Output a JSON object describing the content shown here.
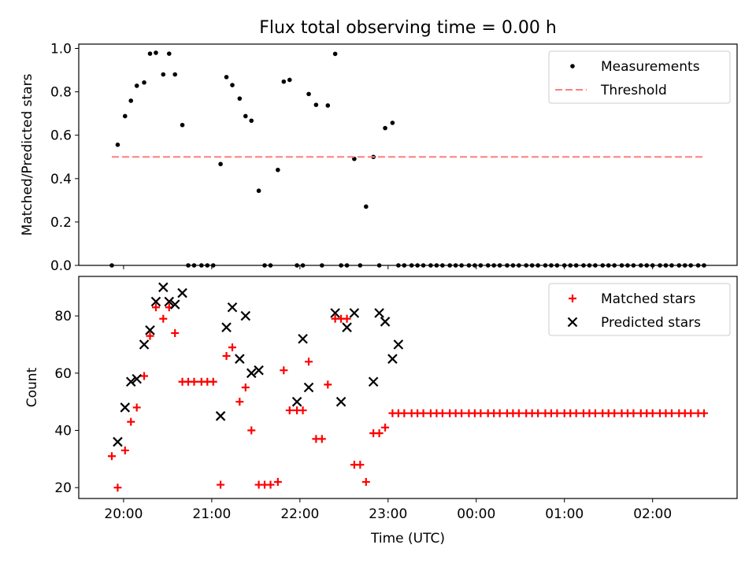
{
  "title": "Flux total observing time = 0.00 h",
  "chart_data": [
    {
      "type": "scatter",
      "ylabel": "Matched/Predicted stars",
      "xlabel": "",
      "ylim": [
        0,
        1.02
      ],
      "yticks": [
        "0.0",
        "0.2",
        "0.4",
        "0.6",
        "0.8",
        "1.0"
      ],
      "grid": false,
      "legend_position": "top-right",
      "series": [
        {
          "name": "Measurements",
          "marker": "dot",
          "color": "#000000",
          "x": [
            "19:52",
            "19:56",
            "20:01",
            "20:05",
            "20:09",
            "20:14",
            "20:18",
            "20:22",
            "20:27",
            "20:31",
            "20:35",
            "20:40",
            "20:44",
            "20:48",
            "20:53",
            "20:57",
            "21:01",
            "21:06",
            "21:10",
            "21:14",
            "21:19",
            "21:23",
            "21:27",
            "21:32",
            "21:36",
            "21:40",
            "21:45",
            "21:49",
            "21:53",
            "21:58",
            "22:02",
            "22:06",
            "22:11",
            "22:15",
            "22:19",
            "22:24",
            "22:28",
            "22:32",
            "22:37",
            "22:41",
            "22:45",
            "22:50",
            "22:54",
            "22:58",
            "23:03",
            "23:07",
            "23:11",
            "23:16",
            "23:20",
            "23:24",
            "23:29",
            "23:33",
            "23:37",
            "23:42",
            "23:46",
            "23:50",
            "23:55",
            "23:59",
            "00:03",
            "00:08",
            "00:12",
            "00:16",
            "00:21",
            "00:25",
            "00:29",
            "00:34",
            "00:38",
            "00:42",
            "00:47",
            "00:51",
            "00:55",
            "01:00",
            "01:04",
            "01:08",
            "01:13",
            "01:17",
            "01:21",
            "01:26",
            "01:30",
            "01:34",
            "01:39",
            "01:43",
            "01:47",
            "01:52",
            "01:56",
            "02:00",
            "02:05",
            "02:09",
            "02:13",
            "02:18",
            "02:22",
            "02:26",
            "02:31",
            "02:35"
          ],
          "y": [
            0.0,
            0.556,
            0.688,
            0.759,
            0.828,
            0.843,
            0.976,
            0.98,
            0.88,
            0.976,
            0.88,
            0.647,
            0.0,
            0.0,
            0.0,
            0.0,
            0.0,
            0.467,
            0.868,
            0.831,
            0.769,
            0.688,
            0.667,
            0.344,
            0.0,
            0.0,
            0.44,
            0.847,
            0.855,
            0.0,
            0.0,
            0.79,
            0.74,
            0.0,
            0.737,
            0.975,
            0.0,
            0.0,
            0.491,
            0.0,
            0.271,
            0.5,
            0.0,
            0.633,
            0.657,
            0.0,
            0.0,
            0.0,
            0.0,
            0.0,
            0.0,
            0.0,
            0.0,
            0.0,
            0.0,
            0.0,
            0.0,
            0.0,
            0.0,
            0.0,
            0.0,
            0.0,
            0.0,
            0.0,
            0.0,
            0.0,
            0.0,
            0.0,
            0.0,
            0.0,
            0.0,
            0.0,
            0.0,
            0.0,
            0.0,
            0.0,
            0.0,
            0.0,
            0.0,
            0.0,
            0.0,
            0.0,
            0.0,
            0.0,
            0.0,
            0.0,
            0.0,
            0.0,
            0.0,
            0.0,
            0.0,
            0.0,
            0.0,
            0.0
          ]
        },
        {
          "name": "Threshold",
          "type": "line",
          "style": "dashed",
          "color": "#ff7f7f",
          "x": [
            "19:52",
            "02:35"
          ],
          "y": [
            0.5,
            0.5
          ]
        }
      ]
    },
    {
      "type": "scatter",
      "ylabel": "Count",
      "xlabel": "Time (UTC)",
      "ylim": [
        16.2,
        93.8
      ],
      "yticks": [
        "20",
        "40",
        "60",
        "80"
      ],
      "xticks": [
        "20:00",
        "21:00",
        "22:00",
        "23:00",
        "00:00",
        "01:00",
        "02:00"
      ],
      "grid": false,
      "legend_position": "top-right",
      "series": [
        {
          "name": "Matched stars",
          "marker": "plus",
          "color": "#ff0000",
          "x": [
            "19:52",
            "19:56",
            "20:01",
            "20:05",
            "20:09",
            "20:14",
            "20:18",
            "20:22",
            "20:27",
            "20:31",
            "20:35",
            "20:40",
            "20:44",
            "20:48",
            "20:53",
            "20:57",
            "21:01",
            "21:06",
            "21:10",
            "21:14",
            "21:19",
            "21:23",
            "21:27",
            "21:32",
            "21:36",
            "21:40",
            "21:45",
            "21:49",
            "21:53",
            "21:58",
            "22:02",
            "22:06",
            "22:11",
            "22:15",
            "22:19",
            "22:24",
            "22:28",
            "22:32",
            "22:37",
            "22:41",
            "22:45",
            "22:50",
            "22:54",
            "22:58",
            "23:03",
            "23:07",
            "23:11",
            "23:16",
            "23:20",
            "23:24",
            "23:29",
            "23:33",
            "23:37",
            "23:42",
            "23:46",
            "23:50",
            "23:55",
            "23:59",
            "00:03",
            "00:08",
            "00:12",
            "00:16",
            "00:21",
            "00:25",
            "00:29",
            "00:34",
            "00:38",
            "00:42",
            "00:47",
            "00:51",
            "00:55",
            "01:00",
            "01:04",
            "01:08",
            "01:13",
            "01:17",
            "01:21",
            "01:26",
            "01:30",
            "01:34",
            "01:39",
            "01:43",
            "01:47",
            "01:52",
            "01:56",
            "02:00",
            "02:05",
            "02:09",
            "02:13",
            "02:18",
            "02:22",
            "02:26",
            "02:31",
            "02:35"
          ],
          "y": [
            31,
            20,
            33,
            43,
            48,
            59,
            73,
            83,
            79,
            83,
            74,
            57,
            57,
            57,
            57,
            57,
            57,
            21,
            66,
            69,
            50,
            55,
            40,
            21,
            21,
            21,
            22,
            61,
            47,
            47,
            47,
            64,
            37,
            37,
            56,
            79,
            79,
            79,
            28,
            28,
            22,
            39,
            39,
            41,
            46,
            46,
            46,
            46,
            46,
            46,
            46,
            46,
            46,
            46,
            46,
            46,
            46,
            46,
            46,
            46,
            46,
            46,
            46,
            46,
            46,
            46,
            46,
            46,
            46,
            46,
            46,
            46,
            46,
            46,
            46,
            46,
            46,
            46,
            46,
            46,
            46,
            46,
            46,
            46,
            46,
            46,
            46,
            46,
            46,
            46,
            46,
            46,
            46,
            46
          ]
        },
        {
          "name": "Predicted stars",
          "marker": "x",
          "color": "#000000",
          "x": [
            "19:56",
            "20:01",
            "20:05",
            "20:09",
            "20:14",
            "20:18",
            "20:22",
            "20:27",
            "20:31",
            "20:35",
            "20:40",
            "21:06",
            "21:10",
            "21:14",
            "21:19",
            "21:23",
            "21:27",
            "21:32",
            "21:58",
            "22:02",
            "22:06",
            "22:24",
            "22:28",
            "22:32",
            "22:37",
            "22:50",
            "22:54",
            "22:58",
            "23:03",
            "23:07"
          ],
          "y": [
            36,
            48,
            57,
            58,
            70,
            75,
            85,
            90,
            85,
            84,
            88,
            45,
            76,
            83,
            65,
            80,
            60,
            61,
            50,
            72,
            55,
            81,
            50,
            76,
            81,
            57,
            81,
            78,
            65,
            70
          ]
        }
      ]
    }
  ]
}
